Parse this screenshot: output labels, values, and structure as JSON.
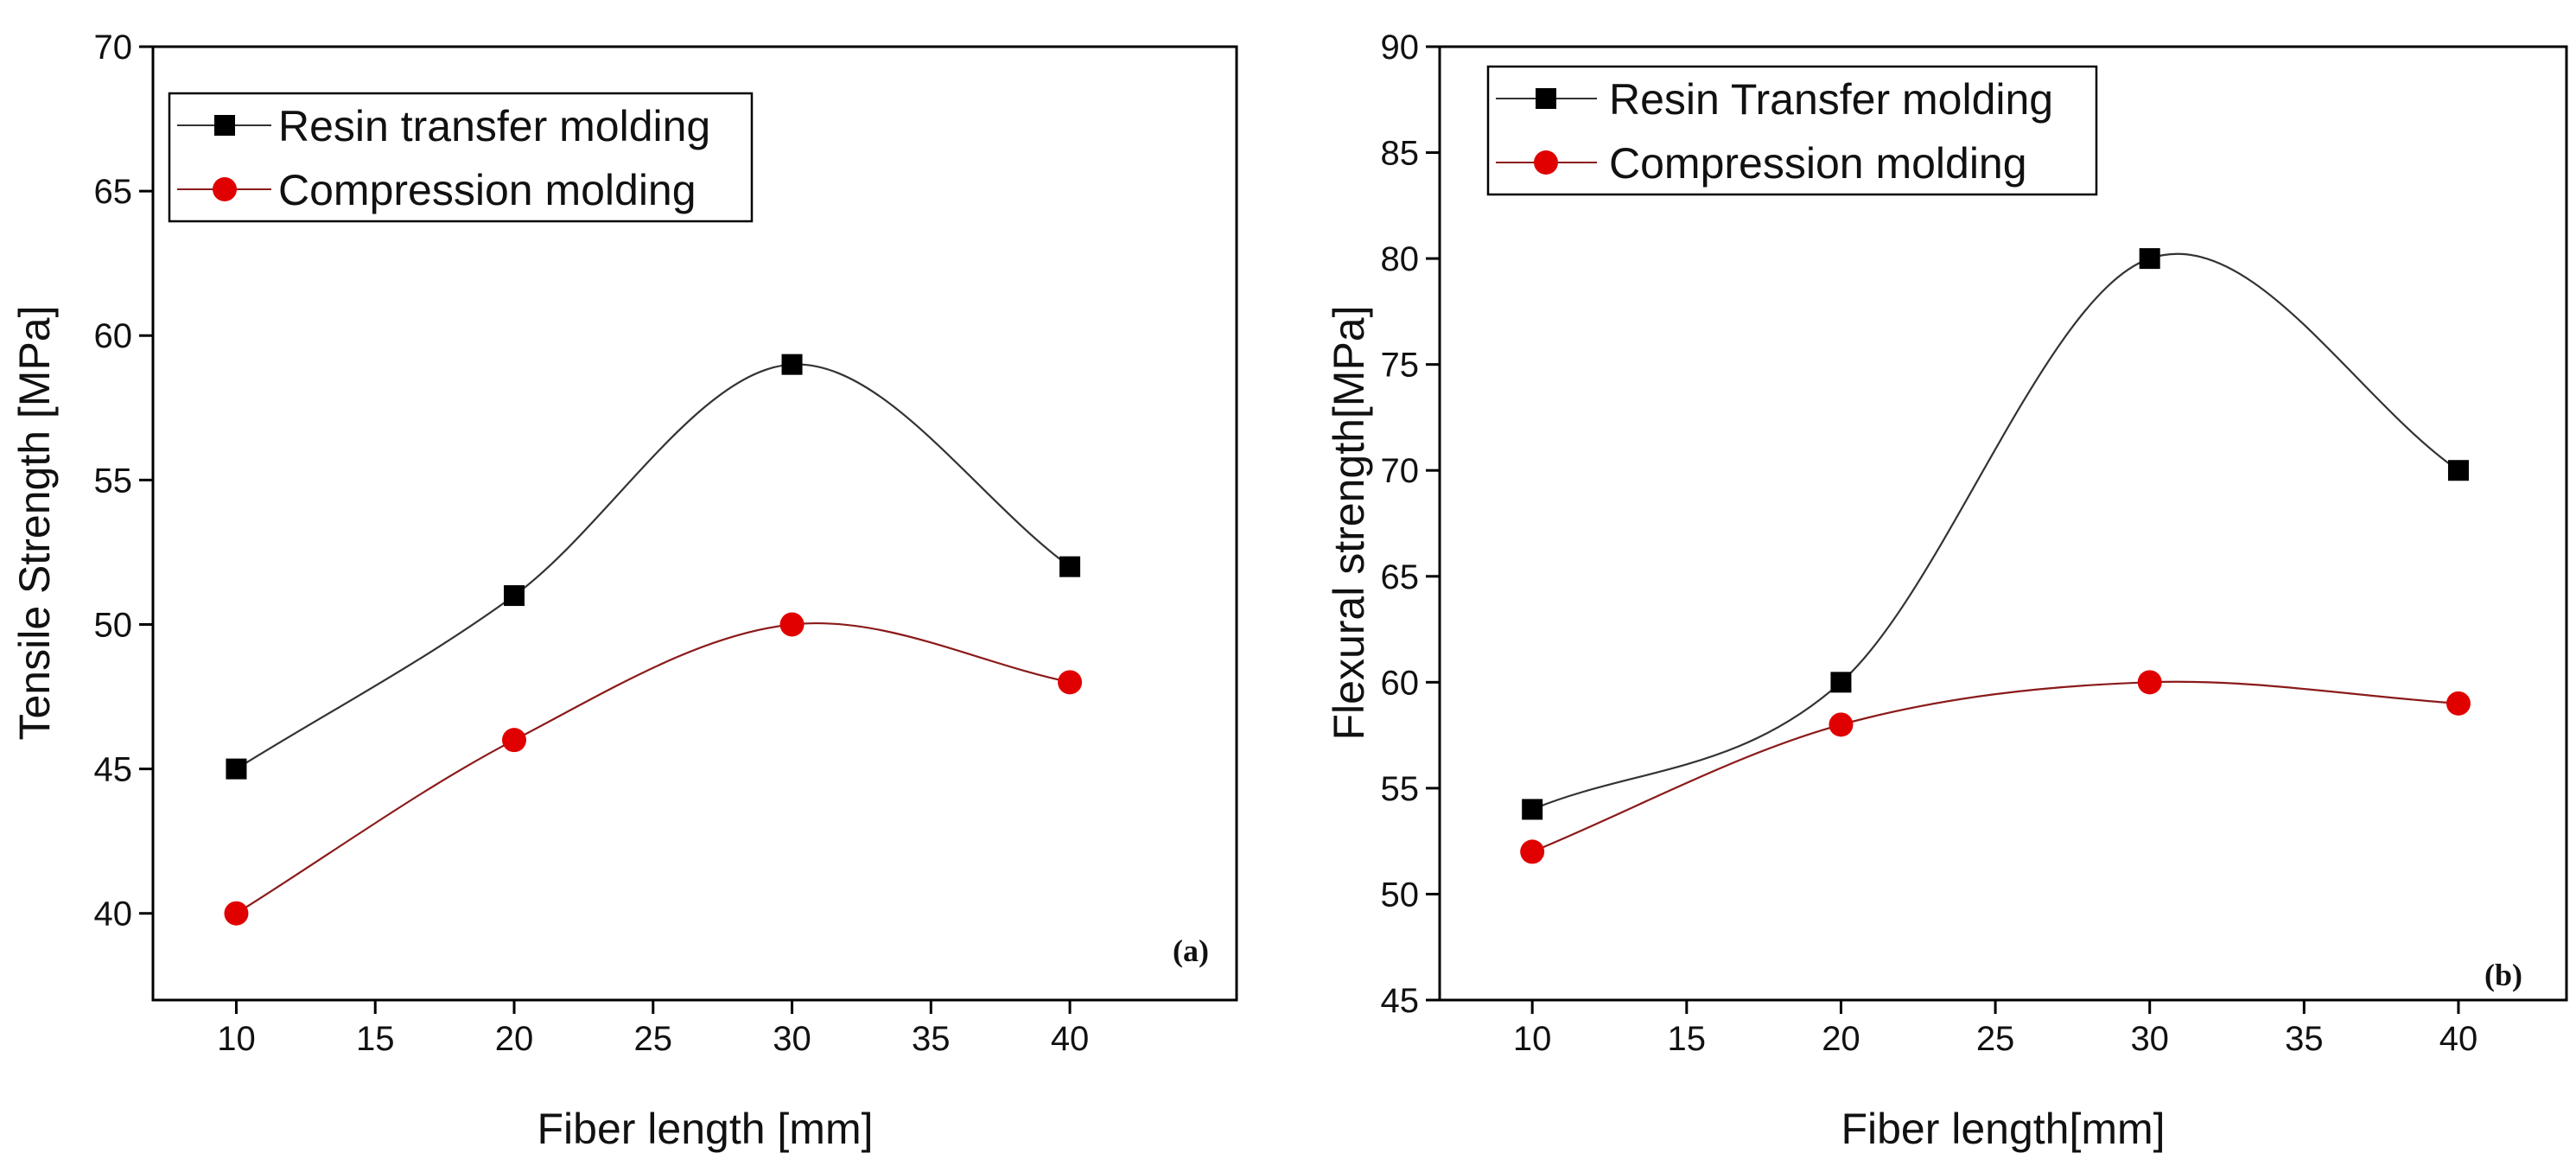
{
  "chart_data": [
    {
      "type": "line",
      "panel_label": "(a)",
      "xlabel": "Fiber length [mm]",
      "ylabel": "Tensile Strength [MPa]",
      "xlim": [
        7,
        46
      ],
      "ylim": [
        37,
        70
      ],
      "xticks": [
        "10",
        "15",
        "20",
        "25",
        "30",
        "35",
        "40"
      ],
      "xtick_values": [
        10,
        15,
        20,
        25,
        30,
        35,
        40
      ],
      "yticks": [
        "40",
        "45",
        "50",
        "55",
        "60",
        "65",
        "70"
      ],
      "ytick_values": [
        40,
        45,
        50,
        55,
        60,
        65,
        70
      ],
      "legend_position": "top-left",
      "series": [
        {
          "name": "Resin transfer molding",
          "marker": "square",
          "color": "#000000",
          "line_color": "#333333",
          "x": [
            10,
            20,
            30,
            40
          ],
          "values": [
            45,
            51,
            59,
            52
          ]
        },
        {
          "name": "Compression molding",
          "marker": "circle",
          "color": "#e00000",
          "line_color": "#8b1a1a",
          "x": [
            10,
            20,
            30,
            40
          ],
          "values": [
            40,
            46,
            50,
            48
          ]
        }
      ]
    },
    {
      "type": "line",
      "panel_label": "(b)",
      "xlabel": "Fiber length[mm]",
      "ylabel": "Flexural strength[MPa]",
      "xlim": [
        7,
        43.5
      ],
      "ylim": [
        45,
        90
      ],
      "xticks": [
        "10",
        "15",
        "20",
        "25",
        "30",
        "35",
        "40"
      ],
      "xtick_values": [
        10,
        15,
        20,
        25,
        30,
        35,
        40
      ],
      "yticks": [
        "45",
        "50",
        "55",
        "60",
        "65",
        "70",
        "75",
        "80",
        "85",
        "90"
      ],
      "ytick_values": [
        45,
        50,
        55,
        60,
        65,
        70,
        75,
        80,
        85,
        90
      ],
      "legend_position": "top-left",
      "series": [
        {
          "name": "Resin Transfer molding",
          "marker": "square",
          "color": "#000000",
          "line_color": "#333333",
          "x": [
            10,
            20,
            30,
            40
          ],
          "values": [
            54,
            60,
            80,
            70
          ]
        },
        {
          "name": "Compression molding",
          "marker": "circle",
          "color": "#e00000",
          "line_color": "#8b1a1a",
          "x": [
            10,
            20,
            30,
            40
          ],
          "values": [
            52,
            58,
            60,
            59
          ]
        }
      ]
    }
  ]
}
